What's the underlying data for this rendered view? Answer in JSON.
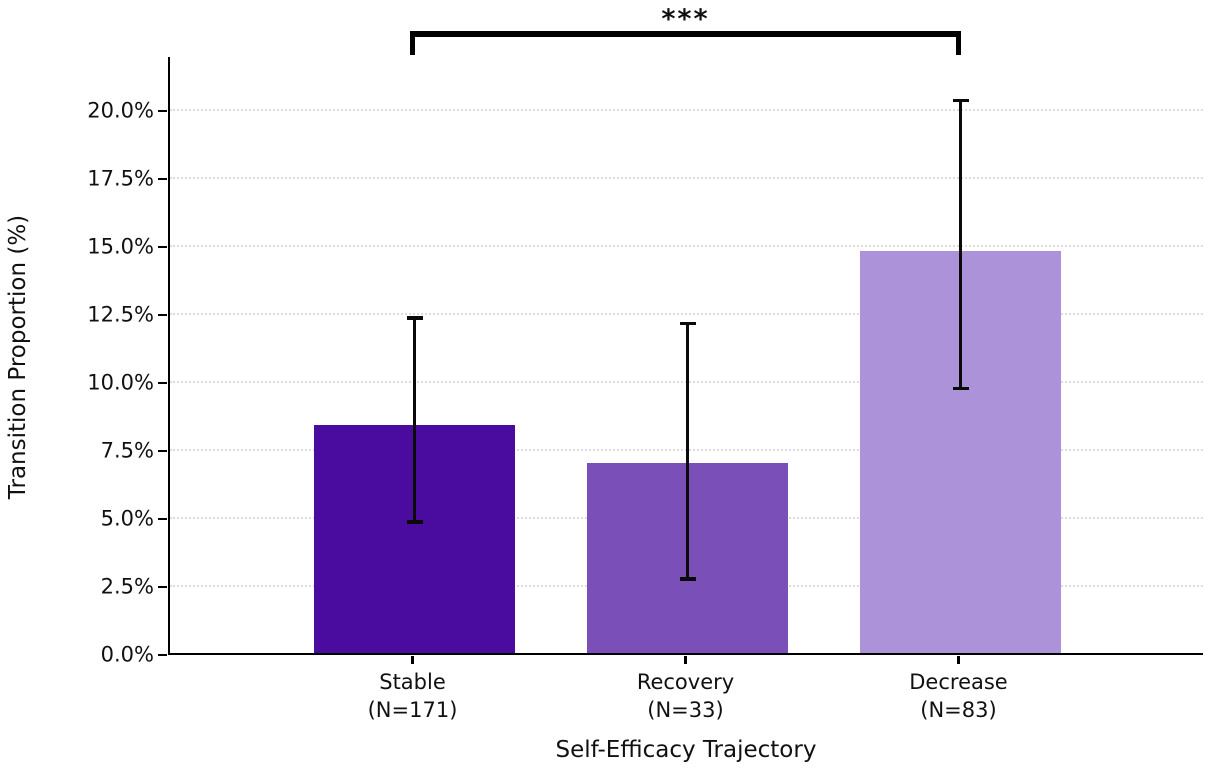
{
  "figure": {
    "title": "",
    "xlabel": "Self-Efficacy Trajectory",
    "ylabel": "Transition Proportion (%)"
  },
  "chart_data": {
    "type": "bar",
    "title": "",
    "xlabel": "Self-Efficacy Trajectory",
    "ylabel": "Transition Proportion (%)",
    "categories": [
      "Stable",
      "Recovery",
      "Decrease"
    ],
    "category_sublabels": [
      "(N=171)",
      "(N=33)",
      "(N=83)"
    ],
    "sample_sizes": [
      171,
      33,
      83
    ],
    "values": [
      8.4,
      7.0,
      14.8
    ],
    "error_low": [
      4.9,
      2.8,
      9.8
    ],
    "error_high": [
      12.4,
      12.2,
      20.4
    ],
    "bar_colors": [
      "#4A0B9F",
      "#7B4FB8",
      "#AC92D8"
    ],
    "error_color": "#0a0a0a",
    "ylim": [
      0,
      22
    ],
    "yticks": [
      0,
      2.5,
      5,
      7.5,
      10,
      12.5,
      15,
      17.5,
      20
    ],
    "ytick_labels": [
      "0.0%",
      "2.5%",
      "5.0%",
      "7.5%",
      "10.0%",
      "12.5%",
      "15.0%",
      "17.5%",
      "20.0%"
    ],
    "grid": "horizontal-dotted",
    "grid_color": "#dcdcdc",
    "legend": "none",
    "significance": {
      "label": "***",
      "from_category": "Stable",
      "to_category": "Decrease"
    }
  }
}
